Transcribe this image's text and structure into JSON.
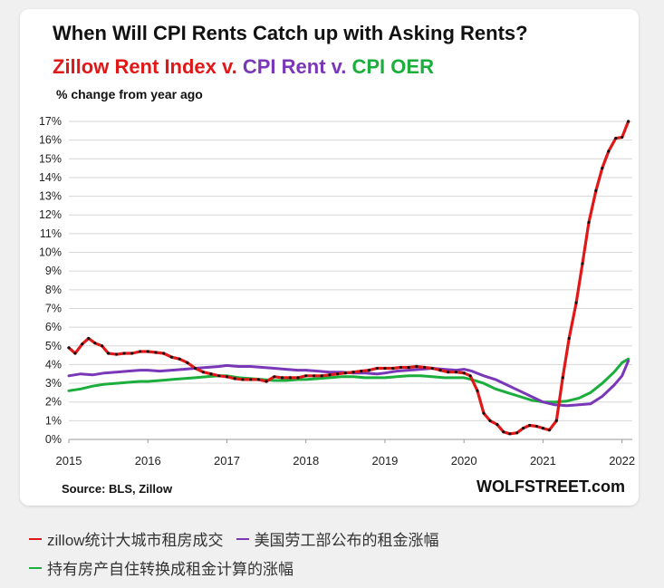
{
  "chart_data": {
    "type": "line",
    "title": "When Will CPI Rents Catch up with Asking Rents?",
    "subtitle_parts": [
      {
        "text": "Zillow Rent Index v.",
        "color": "#e01818"
      },
      {
        "text": "CPI Rent v.",
        "color": "#7a38b8"
      },
      {
        "text": "CPI OER",
        "color": "#1cae3c"
      }
    ],
    "ylabel": "% change from year ago",
    "xlim": [
      2015,
      2022
    ],
    "ylim": [
      0,
      17
    ],
    "x_ticks": [
      "2015",
      "2016",
      "2017",
      "2018",
      "2019",
      "2020",
      "2021",
      "2022"
    ],
    "y_ticks": [
      "0%",
      "1%",
      "2%",
      "3%",
      "4%",
      "5%",
      "6%",
      "7%",
      "8%",
      "9%",
      "10%",
      "11%",
      "12%",
      "13%",
      "14%",
      "15%",
      "16%",
      "17%"
    ],
    "grid": true,
    "series": [
      {
        "name": "Zillow Rent Index",
        "color": "#e01818",
        "points": [
          [
            2015.0,
            4.9
          ],
          [
            2015.08,
            4.6
          ],
          [
            2015.17,
            5.1
          ],
          [
            2015.25,
            5.4
          ],
          [
            2015.33,
            5.15
          ],
          [
            2015.42,
            5.0
          ],
          [
            2015.5,
            4.6
          ],
          [
            2015.6,
            4.55
          ],
          [
            2015.7,
            4.6
          ],
          [
            2015.8,
            4.6
          ],
          [
            2015.9,
            4.7
          ],
          [
            2016.0,
            4.7
          ],
          [
            2016.1,
            4.65
          ],
          [
            2016.2,
            4.6
          ],
          [
            2016.3,
            4.4
          ],
          [
            2016.4,
            4.3
          ],
          [
            2016.5,
            4.1
          ],
          [
            2016.6,
            3.8
          ],
          [
            2016.7,
            3.6
          ],
          [
            2016.8,
            3.5
          ],
          [
            2016.9,
            3.4
          ],
          [
            2017.0,
            3.35
          ],
          [
            2017.1,
            3.25
          ],
          [
            2017.2,
            3.2
          ],
          [
            2017.3,
            3.2
          ],
          [
            2017.4,
            3.2
          ],
          [
            2017.5,
            3.1
          ],
          [
            2017.6,
            3.35
          ],
          [
            2017.7,
            3.3
          ],
          [
            2017.8,
            3.3
          ],
          [
            2017.9,
            3.3
          ],
          [
            2018.0,
            3.4
          ],
          [
            2018.1,
            3.4
          ],
          [
            2018.2,
            3.4
          ],
          [
            2018.3,
            3.45
          ],
          [
            2018.4,
            3.5
          ],
          [
            2018.5,
            3.55
          ],
          [
            2018.6,
            3.6
          ],
          [
            2018.7,
            3.65
          ],
          [
            2018.8,
            3.7
          ],
          [
            2018.9,
            3.8
          ],
          [
            2019.0,
            3.8
          ],
          [
            2019.1,
            3.8
          ],
          [
            2019.2,
            3.85
          ],
          [
            2019.3,
            3.85
          ],
          [
            2019.4,
            3.9
          ],
          [
            2019.5,
            3.85
          ],
          [
            2019.6,
            3.8
          ],
          [
            2019.7,
            3.7
          ],
          [
            2019.8,
            3.6
          ],
          [
            2019.9,
            3.6
          ],
          [
            2020.0,
            3.55
          ],
          [
            2020.08,
            3.4
          ],
          [
            2020.17,
            2.6
          ],
          [
            2020.25,
            1.4
          ],
          [
            2020.33,
            1.0
          ],
          [
            2020.42,
            0.8
          ],
          [
            2020.5,
            0.4
          ],
          [
            2020.58,
            0.3
          ],
          [
            2020.67,
            0.35
          ],
          [
            2020.75,
            0.6
          ],
          [
            2020.83,
            0.75
          ],
          [
            2020.92,
            0.7
          ],
          [
            2021.0,
            0.6
          ],
          [
            2021.08,
            0.5
          ],
          [
            2021.17,
            1.0
          ],
          [
            2021.25,
            3.3
          ],
          [
            2021.33,
            5.4
          ],
          [
            2021.42,
            7.3
          ],
          [
            2021.5,
            9.4
          ],
          [
            2021.58,
            11.6
          ],
          [
            2021.67,
            13.3
          ],
          [
            2021.75,
            14.5
          ],
          [
            2021.83,
            15.4
          ],
          [
            2021.92,
            16.1
          ],
          [
            2022.0,
            16.15
          ],
          [
            2022.08,
            17.0
          ]
        ]
      },
      {
        "name": "CPI Rent",
        "color": "#7a38b8",
        "points": [
          [
            2015.0,
            3.4
          ],
          [
            2015.15,
            3.5
          ],
          [
            2015.3,
            3.45
          ],
          [
            2015.45,
            3.55
          ],
          [
            2015.6,
            3.6
          ],
          [
            2015.75,
            3.65
          ],
          [
            2015.9,
            3.7
          ],
          [
            2016.0,
            3.7
          ],
          [
            2016.15,
            3.65
          ],
          [
            2016.3,
            3.7
          ],
          [
            2016.45,
            3.75
          ],
          [
            2016.6,
            3.8
          ],
          [
            2016.75,
            3.85
          ],
          [
            2016.9,
            3.9
          ],
          [
            2017.0,
            3.95
          ],
          [
            2017.15,
            3.9
          ],
          [
            2017.3,
            3.9
          ],
          [
            2017.45,
            3.85
          ],
          [
            2017.6,
            3.8
          ],
          [
            2017.75,
            3.75
          ],
          [
            2017.9,
            3.7
          ],
          [
            2018.0,
            3.7
          ],
          [
            2018.15,
            3.65
          ],
          [
            2018.3,
            3.6
          ],
          [
            2018.45,
            3.6
          ],
          [
            2018.6,
            3.55
          ],
          [
            2018.75,
            3.55
          ],
          [
            2018.9,
            3.5
          ],
          [
            2019.0,
            3.55
          ],
          [
            2019.15,
            3.65
          ],
          [
            2019.3,
            3.7
          ],
          [
            2019.45,
            3.75
          ],
          [
            2019.6,
            3.8
          ],
          [
            2019.75,
            3.75
          ],
          [
            2019.9,
            3.7
          ],
          [
            2020.0,
            3.75
          ],
          [
            2020.1,
            3.65
          ],
          [
            2020.25,
            3.4
          ],
          [
            2020.4,
            3.2
          ],
          [
            2020.55,
            2.9
          ],
          [
            2020.7,
            2.6
          ],
          [
            2020.85,
            2.3
          ],
          [
            2021.0,
            2.0
          ],
          [
            2021.15,
            1.85
          ],
          [
            2021.3,
            1.8
          ],
          [
            2021.45,
            1.85
          ],
          [
            2021.6,
            1.9
          ],
          [
            2021.75,
            2.3
          ],
          [
            2021.9,
            2.9
          ],
          [
            2022.0,
            3.4
          ],
          [
            2022.08,
            4.2
          ]
        ]
      },
      {
        "name": "CPI OER",
        "color": "#1cae3c",
        "points": [
          [
            2015.0,
            2.6
          ],
          [
            2015.15,
            2.7
          ],
          [
            2015.3,
            2.85
          ],
          [
            2015.45,
            2.95
          ],
          [
            2015.6,
            3.0
          ],
          [
            2015.75,
            3.05
          ],
          [
            2015.9,
            3.1
          ],
          [
            2016.0,
            3.1
          ],
          [
            2016.15,
            3.15
          ],
          [
            2016.3,
            3.2
          ],
          [
            2016.45,
            3.25
          ],
          [
            2016.6,
            3.3
          ],
          [
            2016.75,
            3.35
          ],
          [
            2016.9,
            3.4
          ],
          [
            2017.0,
            3.4
          ],
          [
            2017.15,
            3.3
          ],
          [
            2017.3,
            3.25
          ],
          [
            2017.45,
            3.2
          ],
          [
            2017.6,
            3.15
          ],
          [
            2017.75,
            3.15
          ],
          [
            2017.9,
            3.2
          ],
          [
            2018.0,
            3.2
          ],
          [
            2018.15,
            3.25
          ],
          [
            2018.3,
            3.3
          ],
          [
            2018.45,
            3.35
          ],
          [
            2018.6,
            3.35
          ],
          [
            2018.75,
            3.3
          ],
          [
            2018.9,
            3.3
          ],
          [
            2019.0,
            3.3
          ],
          [
            2019.15,
            3.35
          ],
          [
            2019.3,
            3.4
          ],
          [
            2019.45,
            3.4
          ],
          [
            2019.6,
            3.35
          ],
          [
            2019.75,
            3.3
          ],
          [
            2019.9,
            3.3
          ],
          [
            2020.0,
            3.3
          ],
          [
            2020.1,
            3.2
          ],
          [
            2020.25,
            3.0
          ],
          [
            2020.4,
            2.7
          ],
          [
            2020.55,
            2.5
          ],
          [
            2020.7,
            2.3
          ],
          [
            2020.85,
            2.1
          ],
          [
            2021.0,
            2.0
          ],
          [
            2021.15,
            2.0
          ],
          [
            2021.3,
            2.05
          ],
          [
            2021.45,
            2.2
          ],
          [
            2021.6,
            2.5
          ],
          [
            2021.75,
            3.0
          ],
          [
            2021.9,
            3.6
          ],
          [
            2022.0,
            4.1
          ],
          [
            2022.08,
            4.3
          ]
        ]
      }
    ]
  },
  "source_label": "Source: BLS, Zillow",
  "brand": "WOLFSTREET.com",
  "caption_legend": [
    {
      "text": "zillow统计大城市租房成交",
      "color": "#e01818"
    },
    {
      "text": "美国劳工部公布的租金涨幅",
      "color": "#7a38b8"
    },
    {
      "text": "持有房产自住转换成租金计算的涨幅",
      "color": "#1cae3c"
    }
  ]
}
